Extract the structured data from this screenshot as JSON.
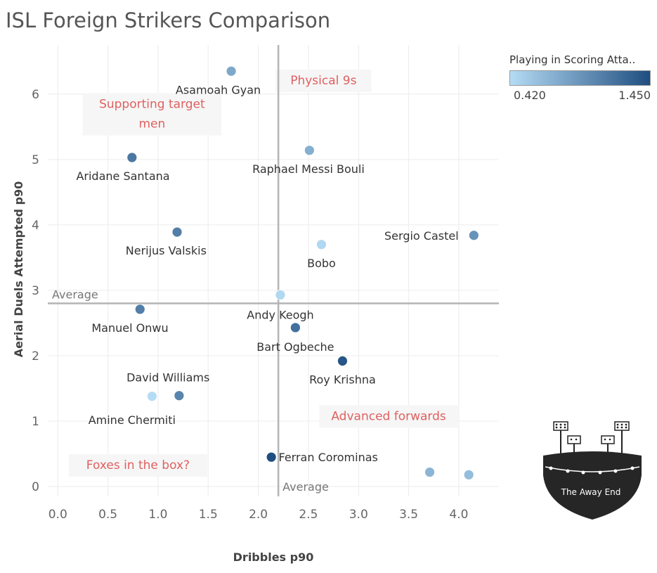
{
  "title": "ISL Foreign Strikers Comparison",
  "chart_data": {
    "type": "scatter",
    "xlabel": "Dribbles p90",
    "ylabel": "Aerial Duels Attempted p90",
    "xlim": [
      -0.1,
      4.4
    ],
    "ylim": [
      -0.15,
      6.75
    ],
    "xticks": [
      "0.0",
      "0.5",
      "1.0",
      "1.5",
      "2.0",
      "2.5",
      "3.0",
      "3.5",
      "4.0"
    ],
    "yticks": [
      "0",
      "1",
      "2",
      "3",
      "4",
      "5",
      "6"
    ],
    "average_x": 2.2,
    "average_y": 2.8,
    "average_label_x": "Average",
    "average_label_y": "Average",
    "color_metric": "Playing in Scoring Atta..",
    "color_range": [
      0.42,
      1.45
    ],
    "color_range_labels": [
      "0.420",
      "1.450"
    ],
    "colors": {
      "low": "#b5dcf5",
      "high": "#1f4e80",
      "quadrant_text": "#e06060",
      "grid": "#ececec",
      "average_line": "#b4b4b4"
    },
    "quadrant_labels": [
      {
        "text": "Supporting target",
        "text2": "men",
        "x": 0.94,
        "y": 5.82
      },
      {
        "text": "Physical 9s",
        "text2": "",
        "x": 2.65,
        "y": 6.18
      },
      {
        "text": "Advanced forwards",
        "text2": "",
        "x": 3.3,
        "y": 1.05
      },
      {
        "text": "Foxes in the box?",
        "text2": "",
        "x": 0.8,
        "y": 0.3
      }
    ],
    "points": [
      {
        "name": "Asamoah Gyan",
        "x": 1.73,
        "y": 6.35,
        "value": 0.8,
        "label_x": 1.6,
        "label_y": 6.07
      },
      {
        "name": "Raphael Messi Bouli",
        "x": 2.51,
        "y": 5.14,
        "value": 0.75,
        "label_x": 2.5,
        "label_y": 4.86
      },
      {
        "name": "Aridane Santana",
        "x": 0.74,
        "y": 5.03,
        "value": 1.15,
        "label_x": 0.65,
        "label_y": 4.75
      },
      {
        "name": "Nerijus Valskis",
        "x": 1.19,
        "y": 3.89,
        "value": 1.1,
        "label_x": 1.08,
        "label_y": 3.61
      },
      {
        "name": "Sergio Castel",
        "x": 4.15,
        "y": 3.84,
        "value": 0.95,
        "label_x": 3.67,
        "label_y": 3.84
      },
      {
        "name": "Bobo",
        "x": 2.63,
        "y": 3.7,
        "value": 0.45,
        "label_x": 2.63,
        "label_y": 3.42
      },
      {
        "name": "Andy Keogh",
        "x": 2.22,
        "y": 2.93,
        "value": 0.45,
        "label_x": 2.22,
        "label_y": 2.63
      },
      {
        "name": "Manuel Onwu",
        "x": 0.82,
        "y": 2.71,
        "value": 1.1,
        "label_x": 0.72,
        "label_y": 2.43
      },
      {
        "name": "Bart Ogbeche",
        "x": 2.37,
        "y": 2.43,
        "value": 1.2,
        "label_x": 2.37,
        "label_y": 2.14
      },
      {
        "name": "Roy Krishna",
        "x": 2.84,
        "y": 1.92,
        "value": 1.4,
        "label_x": 2.84,
        "label_y": 1.64
      },
      {
        "name": "David Williams",
        "x": 1.21,
        "y": 1.39,
        "value": 1.05,
        "label_x": 1.1,
        "label_y": 1.67
      },
      {
        "name": "Amine Chermiti",
        "x": 0.94,
        "y": 1.38,
        "value": 0.42,
        "label_x": 0.74,
        "label_y": 1.02
      },
      {
        "name": "Ferran Corominas",
        "x": 2.13,
        "y": 0.45,
        "value": 1.45,
        "label_x": 2.74,
        "label_y": 0.45
      },
      {
        "name": "",
        "x": 3.71,
        "y": 0.22,
        "value": 0.7,
        "label_x": 3.71,
        "label_y": 0.22
      },
      {
        "name": "",
        "x": 4.1,
        "y": 0.18,
        "value": 0.65,
        "label_x": 4.1,
        "label_y": 0.18
      }
    ]
  },
  "logo": {
    "text": "The Away End"
  }
}
